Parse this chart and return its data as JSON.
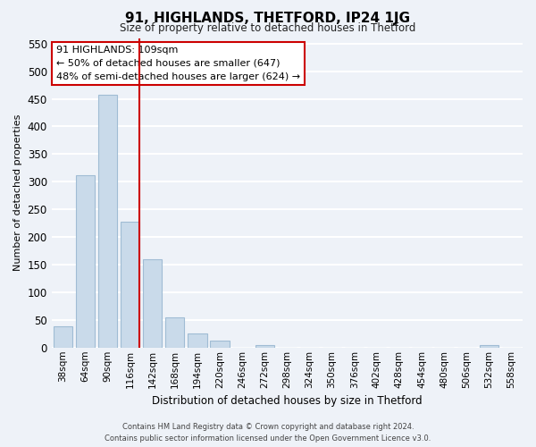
{
  "title": "91, HIGHLANDS, THETFORD, IP24 1JG",
  "subtitle": "Size of property relative to detached houses in Thetford",
  "xlabel": "Distribution of detached houses by size in Thetford",
  "ylabel": "Number of detached properties",
  "bar_labels": [
    "38sqm",
    "64sqm",
    "90sqm",
    "116sqm",
    "142sqm",
    "168sqm",
    "194sqm",
    "220sqm",
    "246sqm",
    "272sqm",
    "298sqm",
    "324sqm",
    "350sqm",
    "376sqm",
    "402sqm",
    "428sqm",
    "454sqm",
    "480sqm",
    "506sqm",
    "532sqm",
    "558sqm"
  ],
  "bar_values": [
    38,
    311,
    457,
    228,
    160,
    55,
    26,
    12,
    0,
    5,
    0,
    0,
    0,
    0,
    0,
    0,
    0,
    0,
    0,
    5,
    0
  ],
  "bar_color": "#c9daea",
  "bar_edgecolor": "#a0bcd4",
  "vline_x_index": 3,
  "vline_color": "#cc0000",
  "annotation_title": "91 HIGHLANDS: 109sqm",
  "annotation_line1": "← 50% of detached houses are smaller (647)",
  "annotation_line2": "48% of semi-detached houses are larger (624) →",
  "annotation_box_color": "#ffffff",
  "annotation_box_edgecolor": "#cc0000",
  "ylim": [
    0,
    560
  ],
  "yticks": [
    0,
    50,
    100,
    150,
    200,
    250,
    300,
    350,
    400,
    450,
    500,
    550
  ],
  "footer_line1": "Contains HM Land Registry data © Crown copyright and database right 2024.",
  "footer_line2": "Contains public sector information licensed under the Open Government Licence v3.0.",
  "background_color": "#eef2f8",
  "grid_color": "#ffffff"
}
